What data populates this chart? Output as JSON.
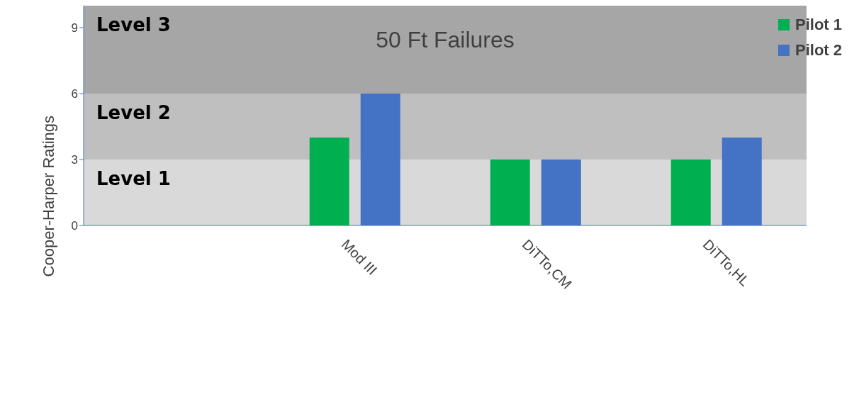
{
  "chart_data": {
    "type": "bar",
    "title": "50 Ft Failures",
    "ylabel": "Cooper-Harper Ratings",
    "categories": [
      null,
      "Mod III",
      "DiTTo,CM",
      "DiTTo,HL"
    ],
    "series": [
      {
        "name": "Pilot 1",
        "color": "#00b050",
        "values": [
          null,
          4,
          3,
          3
        ]
      },
      {
        "name": "Pilot 2",
        "color": "#4472c4",
        "values": [
          null,
          6,
          3,
          4
        ]
      }
    ],
    "ylim": [
      0,
      10
    ],
    "yticks": [
      0,
      3,
      6,
      9
    ],
    "grid": false,
    "legend": "top right",
    "bands": [
      {
        "axis": "y",
        "from": 0,
        "to": 3,
        "label": "Level 1",
        "color": "#d9d9d9"
      },
      {
        "axis": "y",
        "from": 3,
        "to": 6,
        "label": "Level 2",
        "color": "#bfbfbf"
      },
      {
        "axis": "y",
        "from": 6,
        "to": 10,
        "label": "Level 3",
        "color": "#a6a6a6"
      }
    ]
  }
}
